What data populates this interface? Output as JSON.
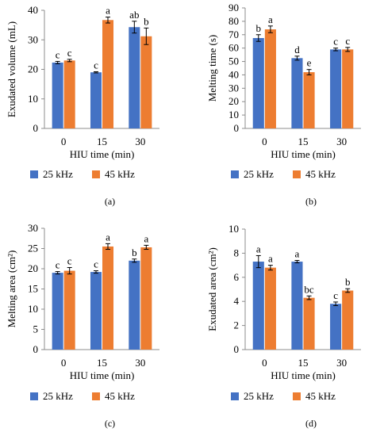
{
  "colors": {
    "series_25": "#4472c4",
    "series_45": "#ed7d31",
    "axis": "#8c8c8c",
    "error_bar": "#000000"
  },
  "chart_data": [
    {
      "type": "bar",
      "panel_label": "(a)",
      "xlabel": "HIU time (min)",
      "ylabel": "Exudated volume (mL)",
      "ylim": [
        0,
        40
      ],
      "yticks": [
        0,
        10,
        20,
        30,
        40
      ],
      "grid": false,
      "legend_position": "bottom",
      "categories": [
        "0",
        "15",
        "30"
      ],
      "series": [
        {
          "name": "25 kHz",
          "values": [
            22.3,
            19.0,
            34.3
          ],
          "errors": [
            0.4,
            0.2,
            2.0
          ],
          "letters": [
            "c",
            "c",
            "ab"
          ]
        },
        {
          "name": "45 kHz",
          "values": [
            23.0,
            36.7,
            31.2
          ],
          "errors": [
            0.4,
            1.0,
            2.8
          ],
          "letters": [
            "c",
            "a",
            "b"
          ]
        }
      ]
    },
    {
      "type": "bar",
      "panel_label": "(b)",
      "xlabel": "HIU time (min)",
      "ylabel": "Melting time (s)",
      "ylim": [
        0,
        90
      ],
      "yticks": [
        0,
        10,
        20,
        30,
        40,
        50,
        60,
        70,
        80,
        90
      ],
      "grid": false,
      "legend_position": "bottom",
      "categories": [
        "0",
        "15",
        "30"
      ],
      "series": [
        {
          "name": "25 kHz",
          "values": [
            67.5,
            52.5,
            59.0
          ],
          "errors": [
            2.5,
            1.5,
            1.0
          ],
          "letters": [
            "b",
            "d",
            "c"
          ]
        },
        {
          "name": "45 kHz",
          "values": [
            74.0,
            42.0,
            59.0
          ],
          "errors": [
            2.5,
            2.0,
            1.5
          ],
          "letters": [
            "a",
            "e",
            "c"
          ]
        }
      ]
    },
    {
      "type": "bar",
      "panel_label": "(c)",
      "xlabel": "HIU time (min)",
      "ylabel": "Melting area (cm²)",
      "ylim": [
        0,
        30
      ],
      "yticks": [
        0,
        5,
        10,
        15,
        20,
        25,
        30
      ],
      "grid": false,
      "legend_position": "bottom",
      "categories": [
        "0",
        "15",
        "30"
      ],
      "series": [
        {
          "name": "25 kHz",
          "values": [
            19.0,
            19.2,
            22.0
          ],
          "errors": [
            0.3,
            0.3,
            0.4
          ],
          "letters": [
            "c",
            "c",
            "b"
          ]
        },
        {
          "name": "45 kHz",
          "values": [
            19.5,
            25.5,
            25.3
          ],
          "errors": [
            0.8,
            0.7,
            0.5
          ],
          "letters": [
            "c",
            "a",
            "a"
          ]
        }
      ]
    },
    {
      "type": "bar",
      "panel_label": "(d)",
      "xlabel": "HIU time (min)",
      "ylabel": "Exudated area (cm²)",
      "ylim": [
        0,
        10
      ],
      "yticks": [
        0,
        2,
        4,
        6,
        8,
        10
      ],
      "grid": false,
      "legend_position": "bottom",
      "categories": [
        "0",
        "15",
        "30"
      ],
      "series": [
        {
          "name": "25 kHz",
          "values": [
            7.3,
            7.3,
            3.8
          ],
          "errors": [
            0.5,
            0.1,
            0.15
          ],
          "letters": [
            "a",
            "a",
            "c"
          ]
        },
        {
          "name": "45 kHz",
          "values": [
            6.8,
            4.3,
            4.9
          ],
          "errors": [
            0.2,
            0.15,
            0.15
          ],
          "letters": [
            "a",
            "bc",
            "b"
          ]
        }
      ]
    }
  ]
}
